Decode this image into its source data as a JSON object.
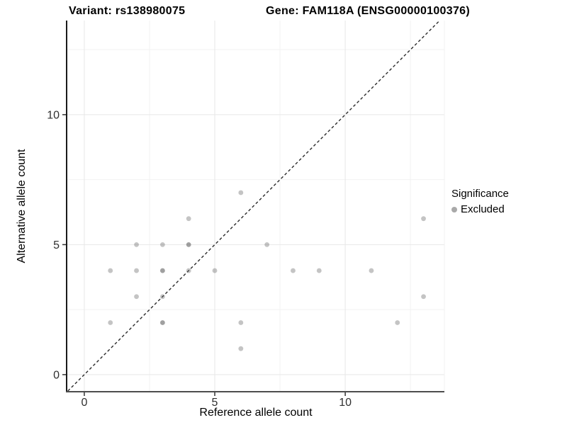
{
  "title": {
    "variant": "Variant: rs138980075",
    "gene": "Gene: FAM118A (ENSG00000100376)"
  },
  "legend": {
    "title": "Significance",
    "items": [
      {
        "label": "Excluded",
        "color": "#a9a9a9"
      }
    ]
  },
  "chart_data": {
    "type": "scatter",
    "title": "Variant: rs138980075 | Gene: FAM118A (ENSG00000100376)",
    "xlabel": "Reference allele count",
    "ylabel": "Alternative allele count",
    "xlim": [
      -0.65,
      13.8
    ],
    "ylim": [
      -0.63,
      13.62
    ],
    "x_major_ticks": [
      0,
      5,
      10
    ],
    "y_major_ticks": [
      0,
      5,
      10
    ],
    "x_minor_ticks": [
      2.5,
      7.5,
      12.5
    ],
    "y_minor_ticks": [
      2.5,
      7.5,
      12.5
    ],
    "grid": true,
    "identity_line": {
      "shown": true,
      "style": "dashed",
      "color": "#2a2a2a"
    },
    "legend_position": "right",
    "series": [
      {
        "name": "Excluded",
        "color": "#646464",
        "alpha_single": 0.38,
        "alpha_double": 0.615,
        "points_format": "[ref_count, alt_count, n_overlapping]",
        "points": [
          [
            6,
            7,
            1
          ],
          [
            4,
            6,
            1
          ],
          [
            13,
            6,
            1
          ],
          [
            2,
            5,
            1
          ],
          [
            3,
            5,
            1
          ],
          [
            4,
            5,
            2
          ],
          [
            7,
            5,
            1
          ],
          [
            1,
            4,
            1
          ],
          [
            2,
            4,
            1
          ],
          [
            3,
            4,
            2
          ],
          [
            4,
            4,
            1
          ],
          [
            5,
            4,
            1
          ],
          [
            8,
            4,
            1
          ],
          [
            9,
            4,
            1
          ],
          [
            11,
            4,
            1
          ],
          [
            2,
            3,
            1
          ],
          [
            3,
            3,
            1
          ],
          [
            13,
            3,
            1
          ],
          [
            1,
            2,
            1
          ],
          [
            3,
            2,
            2
          ],
          [
            6,
            2,
            1
          ],
          [
            12,
            2,
            1
          ],
          [
            6,
            1,
            1
          ]
        ]
      }
    ],
    "colors": {
      "background": "#ffffff",
      "grid_major": "#e7e7e7",
      "grid_minor": "#f2f2f2",
      "axis_line_left": "#1a1a1a",
      "axis_line_bottom": "#4d4d4d",
      "tick_mark": "#333333",
      "tick_label": "#303030"
    }
  }
}
